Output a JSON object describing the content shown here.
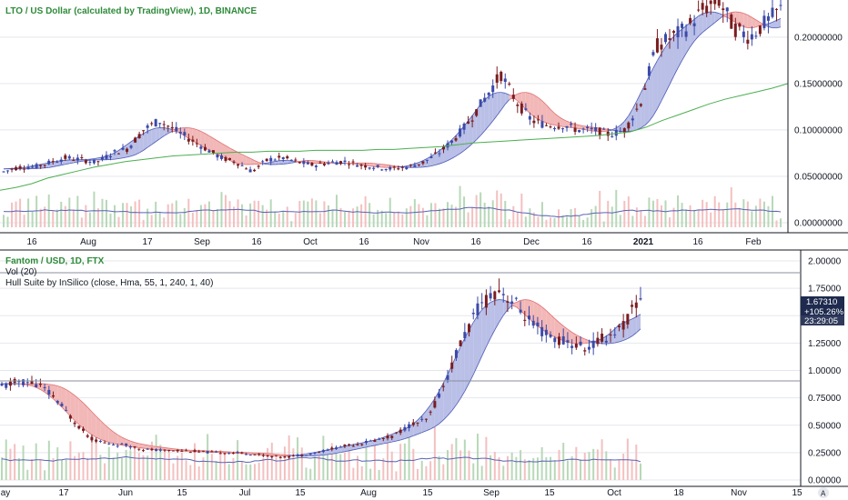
{
  "colors": {
    "green_title": "#2e8b3a",
    "candle_up": "#3b4aa8",
    "candle_down": "#7a1d20",
    "hull_fill": "#b9bfe6",
    "hull_fill_red": "#f2b8b8",
    "hull_line": "#4b58b8",
    "hull_line_red": "#e07070",
    "ma_green": "#4caf50",
    "vol_line": "#5a62b4",
    "vol_bar_up": "#b8d8b8",
    "vol_bar_down": "#f4c0c0",
    "grid": "#e5e7ee",
    "badge_bg": "#1e2a4e"
  },
  "top_panel": {
    "title": "LTO / US Dollar (calculated by TradingView), 1D, BINANCE",
    "y_ticks": [
      "0.20000000",
      "0.15000000",
      "0.10000000",
      "0.05000000",
      "0.00000000"
    ],
    "x_ticks": [
      "16",
      "Aug",
      "17",
      "Sep",
      "16",
      "Oct",
      "16",
      "Nov",
      "16",
      "Dec",
      "16",
      "2021",
      "16",
      "Feb"
    ]
  },
  "bottom_panel": {
    "title": "Fantom / USD, 1D, FTX",
    "vol_label": "Vol (20)",
    "indicator_label": "Hull Suite by InSilico (close, Hma, 55, 1, 240, 1, 40)",
    "y_ticks": [
      "2.00000",
      "1.75000",
      "1.50000",
      "1.25000",
      "1.00000",
      "0.75000",
      "0.50000",
      "0.25000",
      "0.00000"
    ],
    "x_ticks": [
      "ay",
      "17",
      "Jun",
      "15",
      "Jul",
      "15",
      "Aug",
      "15",
      "Sep",
      "15",
      "Oct",
      "18",
      "Nov",
      "15"
    ],
    "price_badge": {
      "price": "1.67310",
      "change": "+105.26%",
      "countdown": "23:29:05"
    },
    "corner_button": "A"
  },
  "chart_data": [
    {
      "type": "line",
      "title": "LTO / US Dollar (calculated by TradingView), 1D, BINANCE",
      "ylim": [
        0.0,
        0.24
      ],
      "series": [
        {
          "values": [
            0.055,
            0.06,
            0.06,
            0.065,
            0.07,
            0.068,
            0.065,
            0.075,
            0.08,
            0.1,
            0.11,
            0.1,
            0.09,
            0.08,
            0.07,
            0.065,
            0.055,
            0.068,
            0.07,
            0.065,
            0.062,
            0.065,
            0.066,
            0.062,
            0.06,
            0.058,
            0.06,
            0.065,
            0.075,
            0.09,
            0.11,
            0.135,
            0.16,
            0.13,
            0.11,
            0.105,
            0.105,
            0.1,
            0.1,
            0.095,
            0.1,
            0.13,
            0.19,
            0.2,
            0.21,
            0.23,
            0.24,
            0.21,
            0.2,
            0.215,
            0.23
          ]
        },
        {
          "values": [
            0.035,
            0.038,
            0.042,
            0.048,
            0.052,
            0.056,
            0.06,
            0.063,
            0.066,
            0.068,
            0.07,
            0.072,
            0.073,
            0.074,
            0.075,
            0.076,
            0.076,
            0.077,
            0.077,
            0.077,
            0.078,
            0.078,
            0.078,
            0.078,
            0.079,
            0.079,
            0.08,
            0.081,
            0.082,
            0.084,
            0.086,
            0.087,
            0.088,
            0.089,
            0.09,
            0.091,
            0.092,
            0.093,
            0.094,
            0.096,
            0.098,
            0.103,
            0.11,
            0.116,
            0.122,
            0.128,
            0.133,
            0.137,
            0.141,
            0.145,
            0.15
          ]
        }
      ]
    },
    {
      "type": "line",
      "title": "Fantom / USD, 1D, FTX",
      "ylim": [
        0.0,
        2.1
      ],
      "series": [
        {
          "values": [
            0.85,
            0.9,
            0.88,
            0.75,
            0.55,
            0.38,
            0.33,
            0.32,
            0.28,
            0.27,
            0.27,
            0.26,
            0.25,
            0.25,
            0.24,
            0.22,
            0.21,
            0.23,
            0.26,
            0.3,
            0.33,
            0.36,
            0.4,
            0.5,
            0.55,
            0.9,
            1.3,
            1.6,
            1.75,
            1.6,
            1.4,
            1.3,
            1.25,
            1.2,
            1.3,
            1.4,
            1.67
          ]
        }
      ]
    }
  ]
}
